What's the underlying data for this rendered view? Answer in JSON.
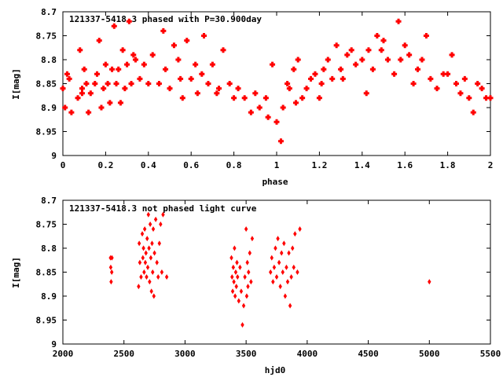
{
  "chart_data": [
    {
      "type": "scatter",
      "title": "121337-5418.3 phased with P=30.900day",
      "xlabel": "phase",
      "ylabel": "I[mag]",
      "xlim": [
        0,
        2
      ],
      "ylim": [
        8.7,
        9.0
      ],
      "y_inverted": true,
      "grid": false,
      "legend": "none",
      "marker": "filled-cross",
      "color": "#ff0000",
      "xticks": [
        "0",
        "0.2",
        "0.4",
        "0.6",
        "0.8",
        "1",
        "1.2",
        "1.4",
        "1.6",
        "1.8",
        "2"
      ],
      "yticks": [
        "8.7",
        "8.75",
        "8.8",
        "8.85",
        "8.9",
        "8.95",
        "9"
      ],
      "series": [
        {
          "x": [
            0.0,
            0.02,
            0.01,
            0.03,
            0.04,
            0.07,
            0.08,
            0.09,
            0.1,
            0.09,
            0.11,
            0.12,
            0.13,
            0.15,
            0.16,
            0.17,
            0.18,
            0.19,
            0.2,
            0.21,
            0.22,
            0.23,
            0.24,
            0.25,
            0.26,
            0.27,
            0.28,
            0.29,
            0.3,
            0.31,
            0.32,
            0.33,
            0.34,
            0.36,
            0.38,
            0.4,
            0.42,
            0.45,
            0.47,
            0.48,
            0.5,
            0.52,
            0.54,
            0.55,
            0.56,
            0.58,
            0.6,
            0.62,
            0.63,
            0.65,
            0.66,
            0.68,
            0.7,
            0.72,
            0.73,
            0.75,
            0.78,
            0.8,
            0.82,
            0.85,
            0.88,
            0.9,
            0.92,
            0.95,
            0.96,
            0.98,
            1.0,
            1.02,
            1.03,
            1.05,
            1.06,
            1.08,
            1.09,
            1.1,
            1.12,
            1.14,
            1.16,
            1.18,
            1.2,
            1.21,
            1.22,
            1.24,
            1.26,
            1.28,
            1.3,
            1.31,
            1.33,
            1.35,
            1.37,
            1.4,
            1.42,
            1.43,
            1.45,
            1.47,
            1.49,
            1.5,
            1.52,
            1.55,
            1.57,
            1.58,
            1.6,
            1.62,
            1.64,
            1.66,
            1.68,
            1.7,
            1.72,
            1.75,
            1.78,
            1.8,
            1.82,
            1.84,
            1.86,
            1.88,
            1.9,
            1.92,
            1.94,
            1.96,
            1.98,
            2.0
          ],
          "y": [
            8.86,
            8.83,
            8.9,
            8.84,
            8.91,
            8.88,
            8.78,
            8.86,
            8.82,
            8.87,
            8.85,
            8.91,
            8.87,
            8.85,
            8.83,
            8.76,
            8.9,
            8.86,
            8.81,
            8.85,
            8.89,
            8.82,
            8.73,
            8.85,
            8.82,
            8.89,
            8.78,
            8.86,
            8.81,
            8.72,
            8.85,
            8.79,
            8.8,
            8.84,
            8.81,
            8.85,
            8.79,
            8.85,
            8.74,
            8.82,
            8.86,
            8.77,
            8.8,
            8.84,
            8.88,
            8.76,
            8.84,
            8.81,
            8.87,
            8.83,
            8.75,
            8.85,
            8.81,
            8.87,
            8.86,
            8.78,
            8.85,
            8.88,
            8.86,
            8.88,
            8.91,
            8.87,
            8.9,
            8.88,
            8.92,
            8.81,
            8.93,
            8.97,
            8.9,
            8.85,
            8.86,
            8.82,
            8.89,
            8.8,
            8.88,
            8.86,
            8.84,
            8.83,
            8.88,
            8.85,
            8.82,
            8.8,
            8.84,
            8.77,
            8.82,
            8.84,
            8.79,
            8.78,
            8.81,
            8.8,
            8.87,
            8.78,
            8.82,
            8.75,
            8.78,
            8.76,
            8.8,
            8.83,
            8.72,
            8.8,
            8.77,
            8.79,
            8.85,
            8.82,
            8.8,
            8.75,
            8.84,
            8.86,
            8.83,
            8.83,
            8.79,
            8.85,
            8.87,
            8.84,
            8.88,
            8.91,
            8.85,
            8.86,
            8.88,
            8.88
          ]
        }
      ]
    },
    {
      "type": "scatter",
      "title": "121337-5418.3 not phased light curve",
      "xlabel": "hjd0",
      "ylabel": "I[mag]",
      "xlim": [
        2000,
        5500
      ],
      "ylim": [
        8.7,
        9.0
      ],
      "y_inverted": true,
      "grid": false,
      "legend": "none",
      "marker": "filled-diamond",
      "color": "#ff0000",
      "xticks": [
        "2000",
        "2500",
        "3000",
        "3500",
        "4000",
        "4500",
        "5000",
        "5500"
      ],
      "yticks": [
        "8.7",
        "8.75",
        "8.8",
        "8.85",
        "8.9",
        "8.95",
        "9"
      ],
      "series": [
        {
          "x": [
            2390,
            2392,
            2395,
            2400,
            2402,
            2620,
            2625,
            2630,
            2640,
            2650,
            2655,
            2660,
            2665,
            2670,
            2675,
            2680,
            2685,
            2690,
            2695,
            2700,
            2705,
            2710,
            2715,
            2720,
            2725,
            2730,
            2735,
            2740,
            2745,
            2750,
            2760,
            2770,
            2780,
            2790,
            2800,
            2810,
            2820,
            2850,
            3380,
            3385,
            3390,
            3395,
            3400,
            3405,
            3410,
            3415,
            3420,
            3425,
            3430,
            3440,
            3450,
            3460,
            3470,
            3480,
            3490,
            3500,
            3505,
            3510,
            3515,
            3520,
            3530,
            3540,
            3550,
            3700,
            3710,
            3720,
            3730,
            3740,
            3750,
            3760,
            3770,
            3780,
            3790,
            3800,
            3810,
            3820,
            3830,
            3840,
            3850,
            3860,
            3870,
            3880,
            3890,
            3900,
            3920,
            3940,
            5000
          ],
          "y": [
            8.82,
            8.84,
            8.87,
            8.85,
            8.82,
            8.88,
            8.79,
            8.83,
            8.86,
            8.77,
            8.82,
            8.8,
            8.85,
            8.76,
            8.83,
            8.81,
            8.86,
            8.78,
            8.84,
            8.73,
            8.8,
            8.87,
            8.75,
            8.82,
            8.89,
            8.79,
            8.85,
            8.76,
            8.9,
            8.81,
            8.74,
            8.83,
            8.86,
            8.79,
            8.75,
            8.85,
            8.73,
            8.86,
            8.82,
            8.86,
            8.89,
            8.84,
            8.87,
            8.8,
            8.9,
            8.85,
            8.88,
            8.83,
            8.86,
            8.91,
            8.84,
            8.89,
            8.96,
            8.92,
            8.86,
            8.76,
            8.9,
            8.83,
            8.88,
            8.85,
            8.81,
            8.87,
            8.78,
            8.85,
            8.82,
            8.87,
            8.84,
            8.8,
            8.86,
            8.78,
            8.83,
            8.88,
            8.81,
            8.85,
            8.79,
            8.9,
            8.84,
            8.87,
            8.81,
            8.92,
            8.86,
            8.8,
            8.84,
            8.77,
            8.85,
            8.76,
            8.87
          ]
        }
      ]
    }
  ]
}
